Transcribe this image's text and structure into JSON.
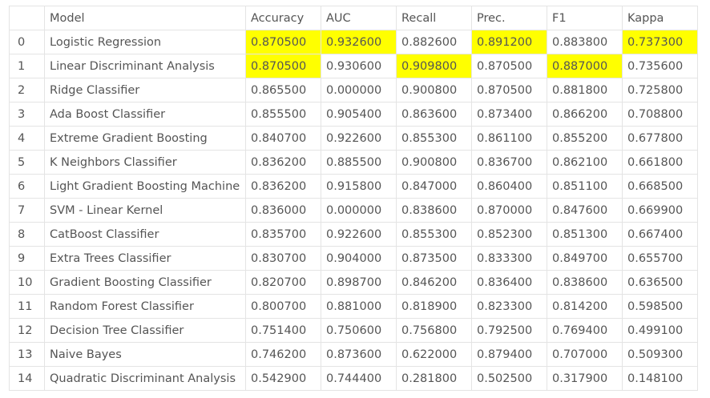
{
  "table": {
    "columns": [
      "",
      "Model",
      "Accuracy",
      "AUC",
      "Recall",
      "Prec.",
      "F1",
      "Kappa"
    ],
    "highlight_color": "#ffff00",
    "rows": [
      {
        "idx": "0",
        "model": "Logistic Regression",
        "accuracy": "0.870500",
        "auc": "0.932600",
        "recall": "0.882600",
        "prec": "0.891200",
        "f1": "0.883800",
        "kappa": "0.737300",
        "highlight": [
          "accuracy",
          "auc",
          "prec",
          "kappa"
        ]
      },
      {
        "idx": "1",
        "model": "Linear Discriminant Analysis",
        "accuracy": "0.870500",
        "auc": "0.930600",
        "recall": "0.909800",
        "prec": "0.870500",
        "f1": "0.887000",
        "kappa": "0.735600",
        "highlight": [
          "accuracy",
          "recall",
          "f1"
        ]
      },
      {
        "idx": "2",
        "model": "Ridge Classifier",
        "accuracy": "0.865500",
        "auc": "0.000000",
        "recall": "0.900800",
        "prec": "0.870500",
        "f1": "0.881800",
        "kappa": "0.725800",
        "highlight": []
      },
      {
        "idx": "3",
        "model": "Ada Boost Classifier",
        "accuracy": "0.855500",
        "auc": "0.905400",
        "recall": "0.863600",
        "prec": "0.873400",
        "f1": "0.866200",
        "kappa": "0.708800",
        "highlight": []
      },
      {
        "idx": "4",
        "model": "Extreme Gradient Boosting",
        "accuracy": "0.840700",
        "auc": "0.922600",
        "recall": "0.855300",
        "prec": "0.861100",
        "f1": "0.855200",
        "kappa": "0.677800",
        "highlight": []
      },
      {
        "idx": "5",
        "model": "K Neighbors Classifier",
        "accuracy": "0.836200",
        "auc": "0.885500",
        "recall": "0.900800",
        "prec": "0.836700",
        "f1": "0.862100",
        "kappa": "0.661800",
        "highlight": []
      },
      {
        "idx": "6",
        "model": "Light Gradient Boosting Machine",
        "accuracy": "0.836200",
        "auc": "0.915800",
        "recall": "0.847000",
        "prec": "0.860400",
        "f1": "0.851100",
        "kappa": "0.668500",
        "highlight": []
      },
      {
        "idx": "7",
        "model": "SVM - Linear Kernel",
        "accuracy": "0.836000",
        "auc": "0.000000",
        "recall": "0.838600",
        "prec": "0.870000",
        "f1": "0.847600",
        "kappa": "0.669900",
        "highlight": []
      },
      {
        "idx": "8",
        "model": "CatBoost Classifier",
        "accuracy": "0.835700",
        "auc": "0.922600",
        "recall": "0.855300",
        "prec": "0.852300",
        "f1": "0.851300",
        "kappa": "0.667400",
        "highlight": []
      },
      {
        "idx": "9",
        "model": "Extra Trees Classifier",
        "accuracy": "0.830700",
        "auc": "0.904000",
        "recall": "0.873500",
        "prec": "0.833300",
        "f1": "0.849700",
        "kappa": "0.655700",
        "highlight": []
      },
      {
        "idx": "10",
        "model": "Gradient Boosting Classifier",
        "accuracy": "0.820700",
        "auc": "0.898700",
        "recall": "0.846200",
        "prec": "0.836400",
        "f1": "0.838600",
        "kappa": "0.636500",
        "highlight": []
      },
      {
        "idx": "11",
        "model": "Random Forest Classifier",
        "accuracy": "0.800700",
        "auc": "0.881000",
        "recall": "0.818900",
        "prec": "0.823300",
        "f1": "0.814200",
        "kappa": "0.598500",
        "highlight": []
      },
      {
        "idx": "12",
        "model": "Decision Tree Classifier",
        "accuracy": "0.751400",
        "auc": "0.750600",
        "recall": "0.756800",
        "prec": "0.792500",
        "f1": "0.769400",
        "kappa": "0.499100",
        "highlight": []
      },
      {
        "idx": "13",
        "model": "Naive Bayes",
        "accuracy": "0.746200",
        "auc": "0.873600",
        "recall": "0.622000",
        "prec": "0.879400",
        "f1": "0.707000",
        "kappa": "0.509300",
        "highlight": []
      },
      {
        "idx": "14",
        "model": "Quadratic Discriminant Analysis",
        "accuracy": "0.542900",
        "auc": "0.744400",
        "recall": "0.281800",
        "prec": "0.502500",
        "f1": "0.317900",
        "kappa": "0.148100",
        "highlight": []
      }
    ]
  }
}
